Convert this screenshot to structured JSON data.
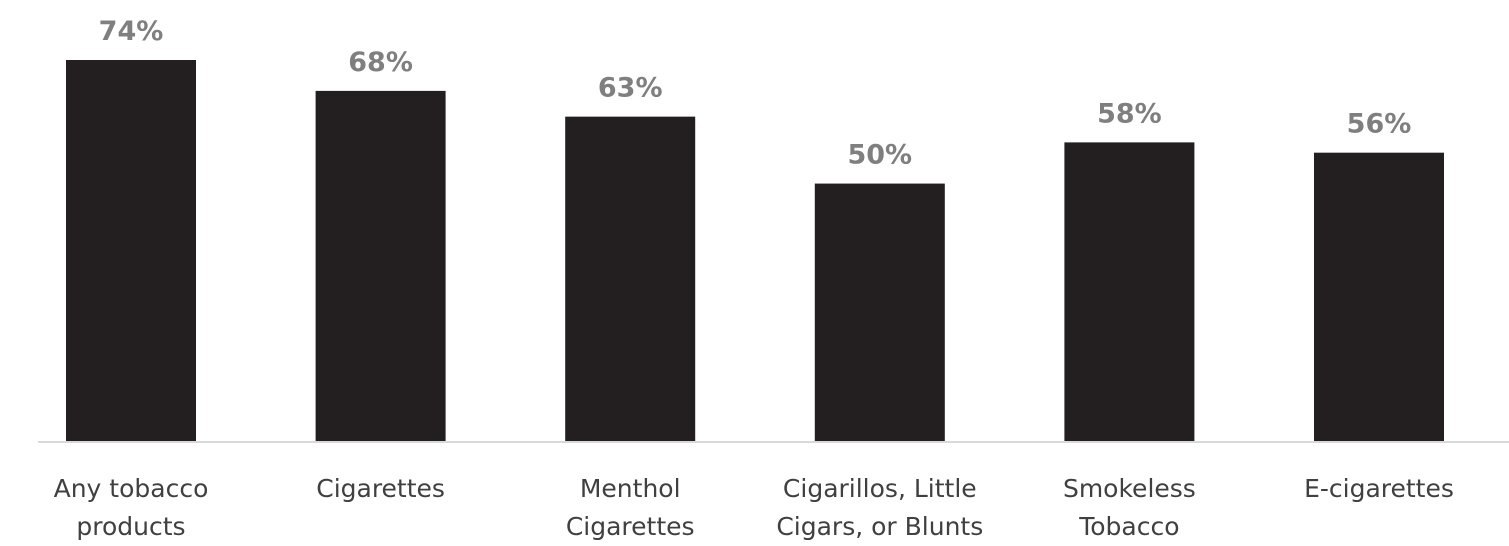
{
  "chart_data": {
    "type": "bar",
    "categories": [
      "Any tobacco products",
      "Cigarettes",
      "Menthol Cigarettes",
      "Cigarillos, Little Cigars, or Blunts",
      "Smokeless Tobacco",
      "E-cigarettes"
    ],
    "values": [
      74,
      68,
      63,
      50,
      58,
      56
    ],
    "value_labels": [
      "74%",
      "68%",
      "63%",
      "50%",
      "58%",
      "56%"
    ],
    "color": "#231f20"
  }
}
